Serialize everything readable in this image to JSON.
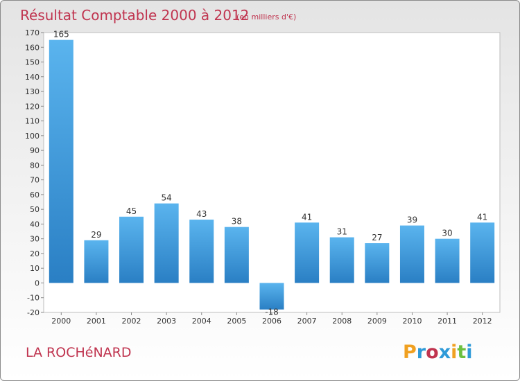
{
  "header": {
    "title": "Résultat Comptable 2000 à 2012",
    "subtitle": "(en milliers d'€)"
  },
  "footer": {
    "commune": "LA ROCHéNARD",
    "logo_text": "Proxiti"
  },
  "colors": {
    "title": "#c0344f",
    "bar_top": "#5ab4ee",
    "bar_bottom": "#2a7fc4",
    "logo_letters": [
      "#f0a020",
      "#2e9ad8",
      "#c0344f",
      "#2e9ad8",
      "#f0a020",
      "#6cc040",
      "#2e9ad8"
    ]
  },
  "chart_data": {
    "type": "bar",
    "categories": [
      "2000",
      "2001",
      "2002",
      "2003",
      "2004",
      "2005",
      "2006",
      "2007",
      "2008",
      "2009",
      "2010",
      "2011",
      "2012"
    ],
    "values": [
      165,
      29,
      45,
      54,
      43,
      38,
      -18,
      41,
      31,
      27,
      39,
      30,
      41
    ],
    "title": "Résultat Comptable 2000 à 2012",
    "ylim": [
      -20,
      170
    ],
    "yticks": [
      -20,
      -10,
      0,
      10,
      20,
      30,
      40,
      50,
      60,
      70,
      80,
      90,
      100,
      110,
      120,
      130,
      140,
      150,
      160,
      170
    ],
    "grid": false,
    "legend": "none"
  }
}
